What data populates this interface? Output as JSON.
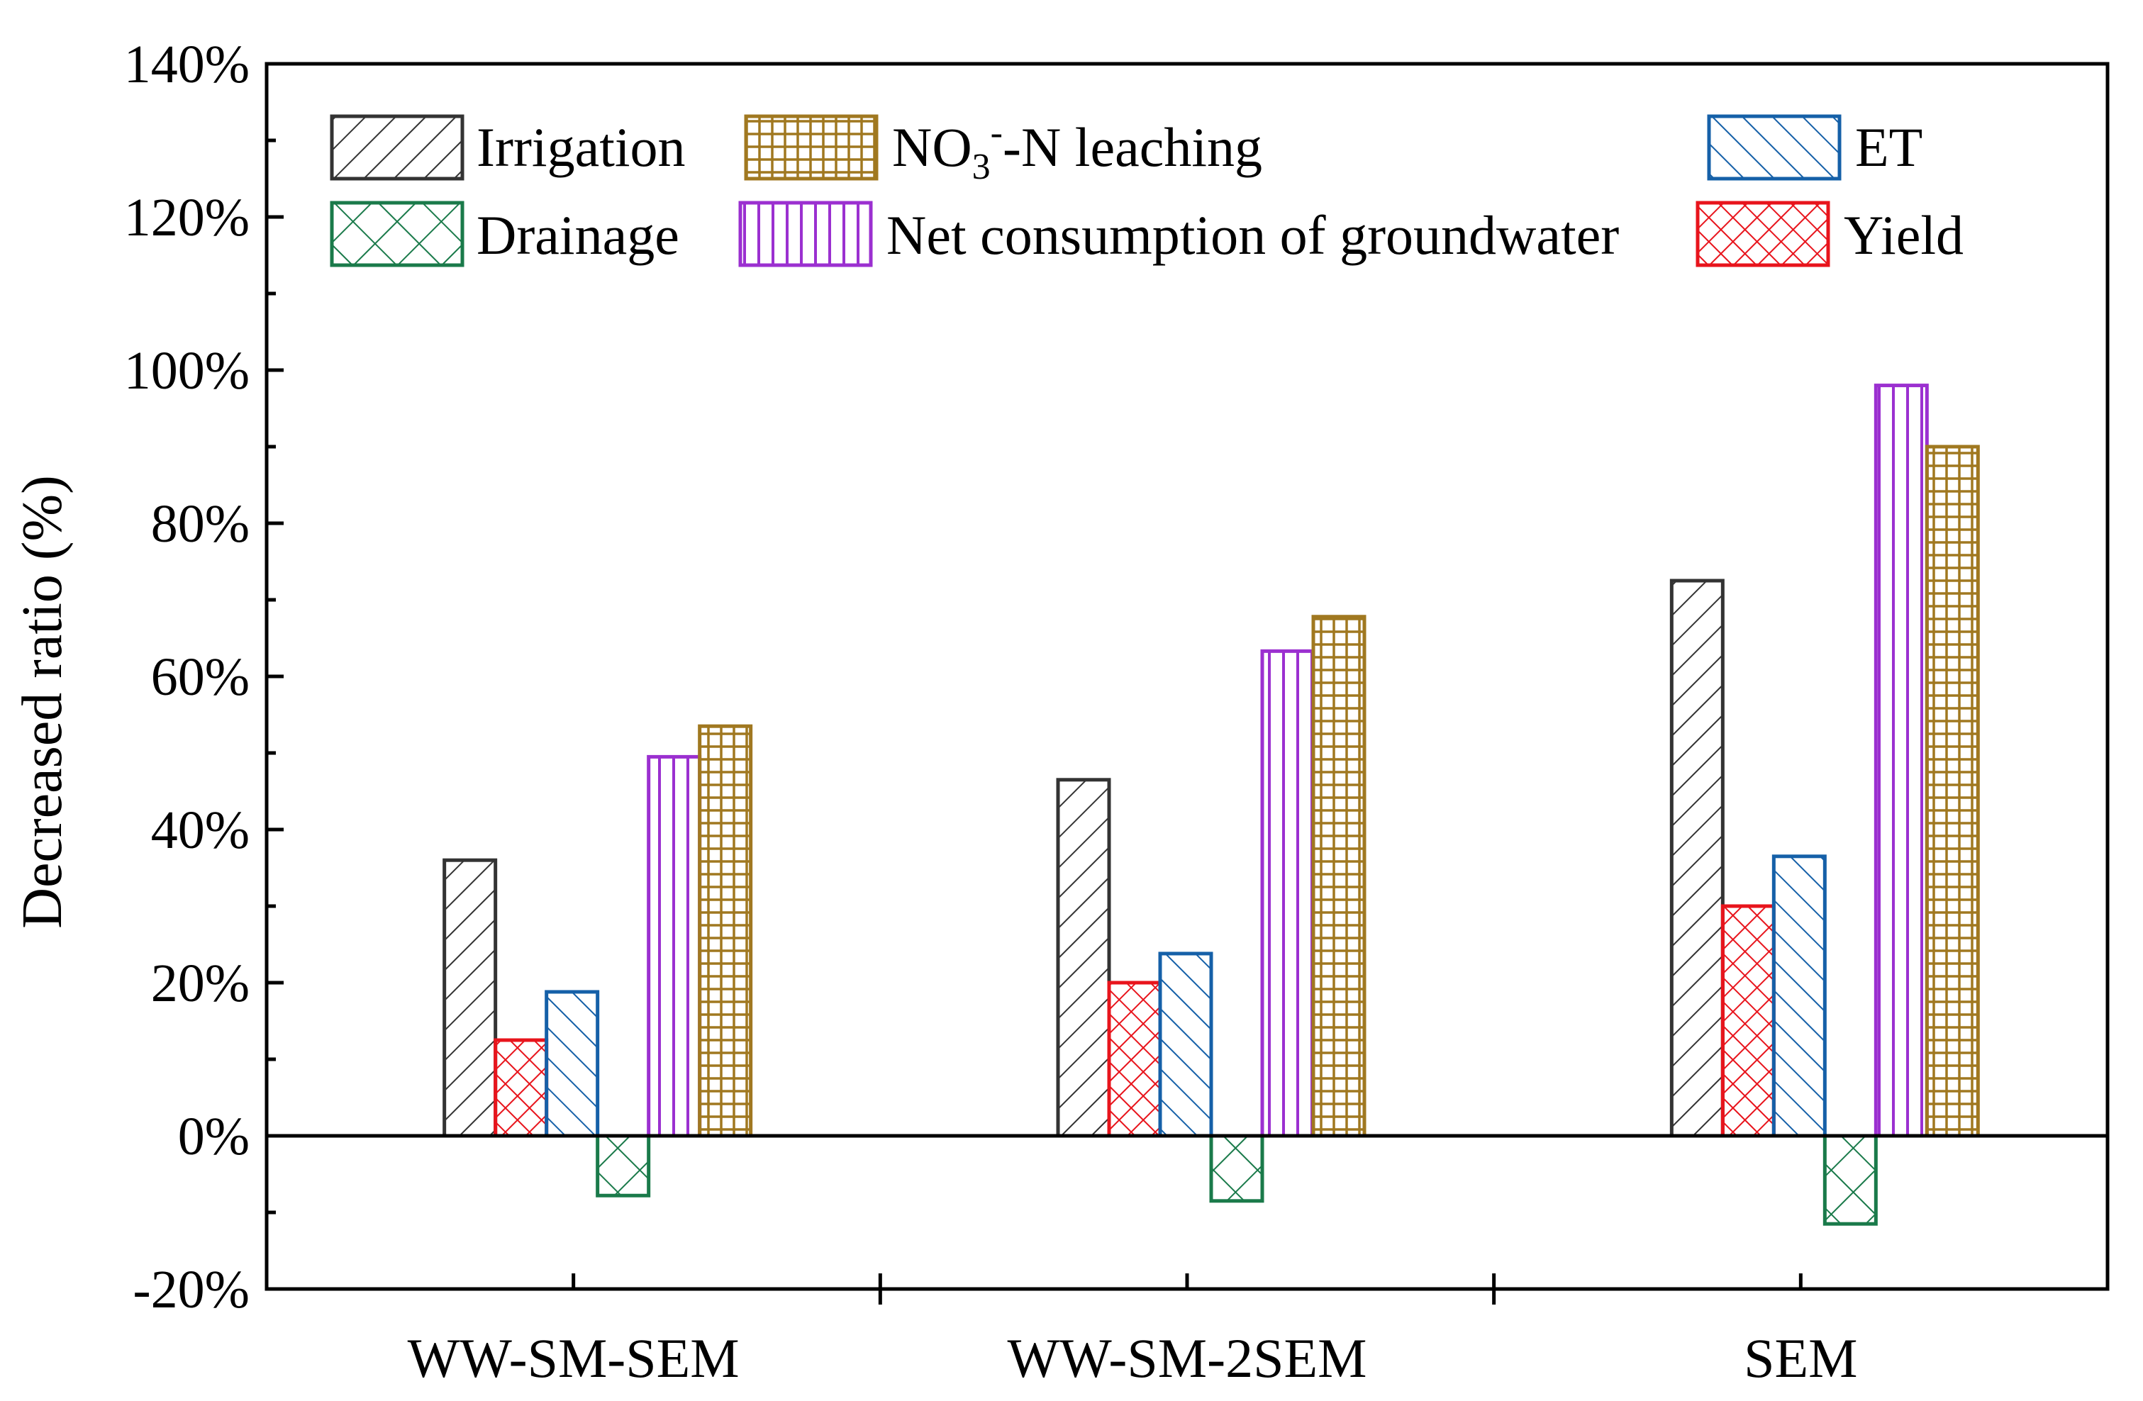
{
  "chart_data": {
    "type": "bar",
    "title": "",
    "xlabel": "",
    "ylabel": "Decreased ratio (%)",
    "ylim": [
      -20,
      140
    ],
    "y_ticks": [
      -20,
      0,
      20,
      40,
      60,
      80,
      100,
      120,
      140
    ],
    "y_tick_labels": [
      "-20%",
      "0%",
      "20%",
      "40%",
      "60%",
      "80%",
      "100%",
      "120%",
      "140%"
    ],
    "categories": [
      "WW-SM-SEM",
      "WW-SM-2SEM",
      "SEM"
    ],
    "legend_position": "top",
    "legend": {
      "no3_prefix": "NO",
      "no3_sub": "3",
      "no3_sup": "-",
      "no3_suffix": "-N leaching"
    },
    "series": [
      {
        "name": "Irrigation",
        "values": [
          36,
          46.5,
          72.5
        ],
        "color": "#333333",
        "pattern": "fwd-diag"
      },
      {
        "name": "Yield",
        "values": [
          12.5,
          20,
          30
        ],
        "color": "#e8141c",
        "pattern": "cross-diag"
      },
      {
        "name": "ET",
        "values": [
          18.8,
          23.8,
          36.5
        ],
        "color": "#1560a8",
        "pattern": "back-diag"
      },
      {
        "name": "Drainage",
        "values": [
          -7.8,
          -8.5,
          -11.5
        ],
        "color": "#1a7a4a",
        "pattern": "cross-diag"
      },
      {
        "name": "Net consumption of groundwater",
        "values": [
          49.5,
          63.3,
          98
        ],
        "color": "#9b30d0",
        "pattern": "vertical"
      },
      {
        "name": "NO3--N leaching",
        "values": [
          53.5,
          67.8,
          90
        ],
        "color": "#a07820",
        "pattern": "grid"
      }
    ]
  }
}
